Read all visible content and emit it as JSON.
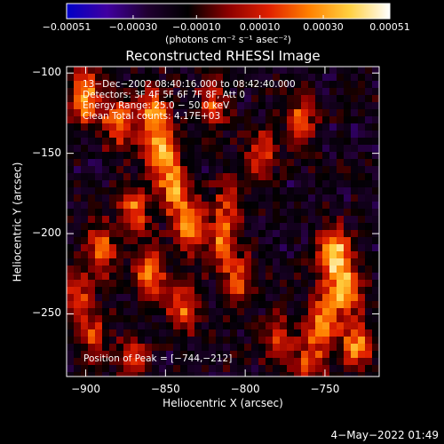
{
  "chart_data": {
    "type": "heatmap",
    "title": "Reconstructed RHESSI Image",
    "xlabel": "Heliocentric X (arcsec)",
    "ylabel": "Heliocentric Y (arcsec)",
    "xlim": [
      -912,
      -716
    ],
    "ylim": [
      -289,
      -96
    ],
    "x_ticks": [
      -900,
      -850,
      -800,
      -750
    ],
    "x_tick_labels": [
      "−900",
      "−850",
      "−800",
      "−750"
    ],
    "y_ticks": [
      -100,
      -150,
      -200,
      -250
    ],
    "y_tick_labels": [
      "−100",
      "−150",
      "−200",
      "−250"
    ],
    "colorbar": {
      "range": [
        -0.00051,
        0.00051
      ],
      "ticks": [
        -0.00051,
        -0.0003,
        -0.0001,
        0.0001,
        0.0003,
        0.00051
      ],
      "tick_labels": [
        "−0.00051",
        "−0.00030",
        "−0.00010",
        "0.00010",
        "0.00030",
        "0.00051"
      ],
      "unit_label": "(photons cm⁻² s⁻¹ asec⁻²)",
      "colors": [
        "#0000c8",
        "#4000a0",
        "#200030",
        "#000000",
        "#8c0000",
        "#e02000",
        "#ff8000",
        "#ffd040",
        "#ffffff"
      ]
    },
    "annotations": [
      "13−Dec−2002 08:40:16.000 to 08:42:40.000",
      "Detectors: 3F 4F 5F 6F 7F 8F, Att 0",
      "Energy Range: 25.0 − 50.0 keV",
      "Clean     Total counts: 4.17E+03"
    ],
    "peak_label": "Position of Peak = [−744,−212]",
    "peak_position": [
      -744,
      -212
    ],
    "grid": false
  },
  "footer": {
    "timestamp": "4−May−2022 01:49"
  }
}
